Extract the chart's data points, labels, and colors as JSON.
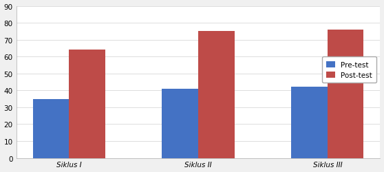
{
  "categories": [
    "Siklus I",
    "Siklus II",
    "Siklus III"
  ],
  "pretest": [
    35,
    41,
    42
  ],
  "posttest": [
    64,
    75,
    76
  ],
  "bar_color_pre": "#4472C4",
  "bar_color_post": "#BE4B48",
  "legend_labels": [
    "Pre-test",
    "Post-test"
  ],
  "ylim": [
    0,
    90
  ],
  "yticks": [
    0,
    10,
    20,
    30,
    40,
    50,
    60,
    70,
    80,
    90
  ],
  "plot_bg_color": "#ffffff",
  "outer_bg_color": "#f0f0f0",
  "bar_width": 0.28,
  "legend_fontsize": 7.5,
  "tick_fontsize": 7.5,
  "grid_color": "#d8d8d8",
  "fig_width": 5.58,
  "fig_height": 2.51,
  "fig_dpi": 100
}
